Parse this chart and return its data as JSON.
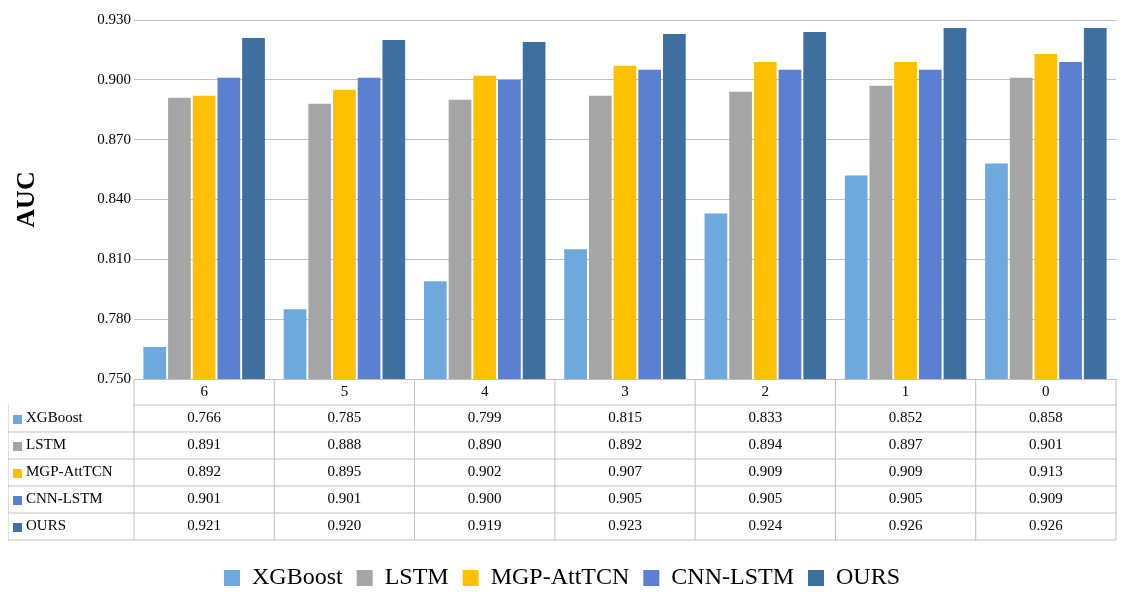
{
  "chart_data": {
    "type": "bar",
    "ylabel": "AUC",
    "categories": [
      "6",
      "5",
      "4",
      "3",
      "2",
      "1",
      "0"
    ],
    "series": [
      {
        "name": "XGBoost",
        "color": "#6fa8dc",
        "values": [
          0.766,
          0.785,
          0.799,
          0.815,
          0.833,
          0.852,
          0.858
        ],
        "value_labels": [
          "0.766",
          "0.785",
          "0.799",
          "0.815",
          "0.833",
          "0.852",
          "0.858"
        ]
      },
      {
        "name": "LSTM",
        "color": "#a5a5a5",
        "values": [
          0.891,
          0.888,
          0.89,
          0.892,
          0.894,
          0.897,
          0.901
        ],
        "value_labels": [
          "0.891",
          "0.888",
          "0.890",
          "0.892",
          "0.894",
          "0.897",
          "0.901"
        ]
      },
      {
        "name": "MGP-AttTCN",
        "color": "#ffc000",
        "values": [
          0.892,
          0.895,
          0.902,
          0.907,
          0.909,
          0.909,
          0.913
        ],
        "value_labels": [
          "0.892",
          "0.895",
          "0.902",
          "0.907",
          "0.909",
          "0.909",
          "0.913"
        ]
      },
      {
        "name": "CNN-LSTM",
        "color": "#5b7fd1",
        "values": [
          0.901,
          0.901,
          0.9,
          0.905,
          0.905,
          0.905,
          0.909
        ],
        "value_labels": [
          "0.901",
          "0.901",
          "0.900",
          "0.905",
          "0.905",
          "0.905",
          "0.909"
        ]
      },
      {
        "name": "OURS",
        "color": "#3f6f9f",
        "values": [
          0.921,
          0.92,
          0.919,
          0.923,
          0.924,
          0.926,
          0.926
        ],
        "value_labels": [
          "0.921",
          "0.920",
          "0.919",
          "0.923",
          "0.924",
          "0.926",
          "0.926"
        ]
      }
    ],
    "ylim": [
      0.75,
      0.93
    ],
    "yticks": [
      {
        "value": 0.75,
        "label": "0.750"
      },
      {
        "value": 0.78,
        "label": "0.780"
      },
      {
        "value": 0.81,
        "label": "0.810"
      },
      {
        "value": 0.84,
        "label": "0.840"
      },
      {
        "value": 0.87,
        "label": "0.870"
      },
      {
        "value": 0.9,
        "label": "0.900"
      },
      {
        "value": 0.93,
        "label": "0.930"
      }
    ],
    "grid": "y",
    "legend": "bottom"
  }
}
